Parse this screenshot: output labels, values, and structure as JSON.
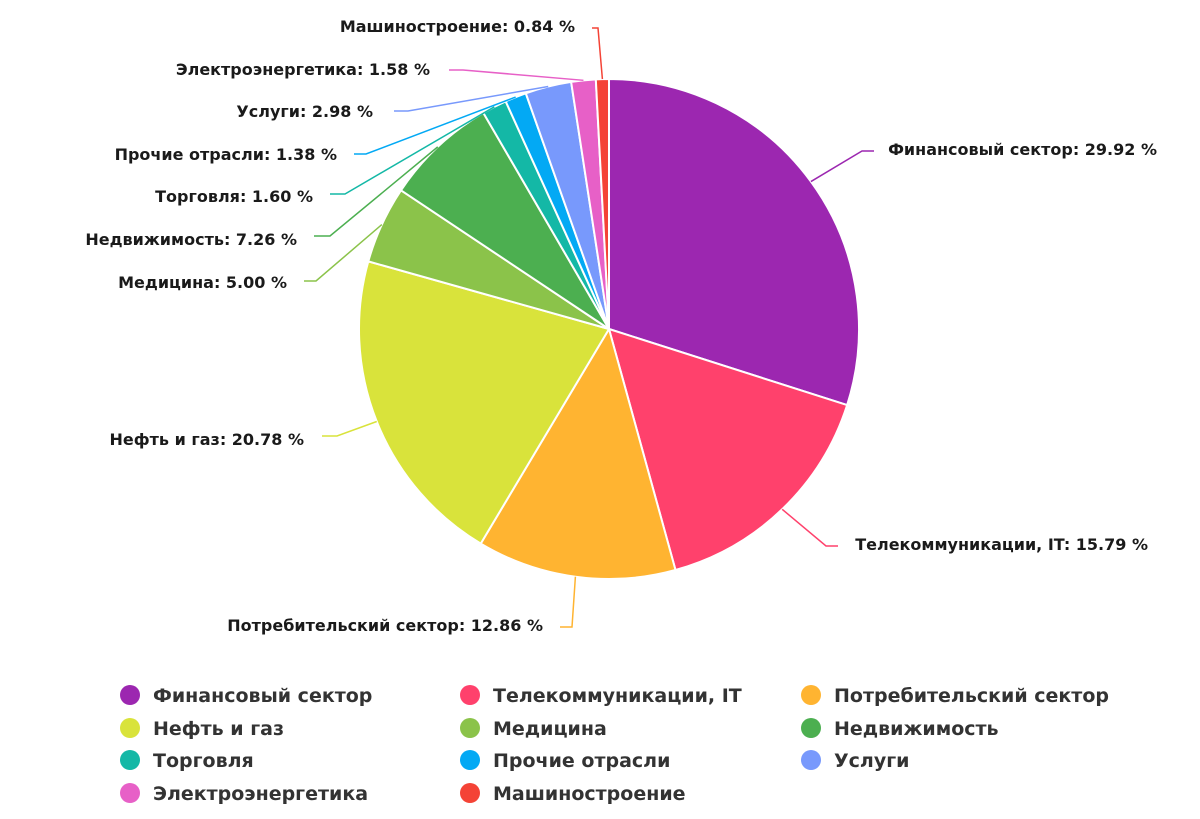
{
  "chart_data": {
    "type": "pie",
    "title": "",
    "legend_position": "bottom",
    "categories": [
      "Финансовый сектор",
      "Телекоммуникации, IT",
      "Потребительский сектор",
      "Нефть и газ",
      "Медицина",
      "Недвижимость",
      "Торговля",
      "Прочие отрасли",
      "Услуги",
      "Электроэнергетика",
      "Машиностроение"
    ],
    "values": [
      29.92,
      15.79,
      12.86,
      20.78,
      5.0,
      7.26,
      1.6,
      1.38,
      2.98,
      1.58,
      0.84
    ],
    "value_labels": [
      "29.92 %",
      "15.79 %",
      "12.86 %",
      "20.78 %",
      "5.00 %",
      "7.26 %",
      "1.60 %",
      "1.38 %",
      "2.98 %",
      "1.58 %",
      "0.84 %"
    ],
    "colors": [
      "#9c27b0",
      "#ff416c",
      "#ffb431",
      "#d9e33b",
      "#8bc34a",
      "#4caf50",
      "#14b8a6",
      "#03a9f4",
      "#7899fc",
      "#e760c7",
      "#f44336"
    ]
  }
}
